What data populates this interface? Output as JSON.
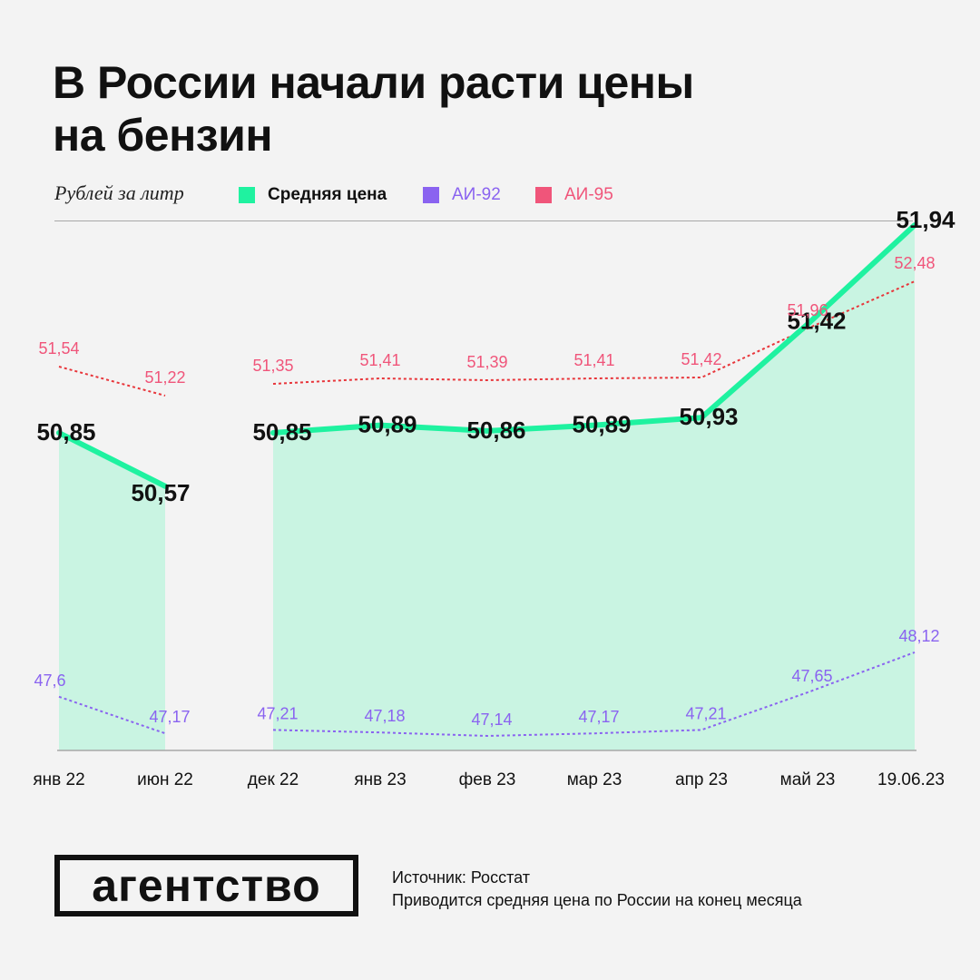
{
  "header": {
    "title_line1": "В России начали расти цены",
    "title_line2": "на бензин",
    "unit_label": "Рублей за литр"
  },
  "legend": {
    "avg": "Средняя цена",
    "ai92": "АИ-92",
    "ai95": "АИ-95"
  },
  "colors": {
    "avg_line": "#1ff2a0",
    "avg_fill": "#c9f4e2",
    "ai92": "#8a63f0",
    "ai95": "#f0557a",
    "ai95_line": "#e8353a",
    "axis": "#a8a8a8"
  },
  "chart_data": {
    "type": "line",
    "categories": [
      "янв 22",
      "июн 22",
      "дек 22",
      "янв 23",
      "фев 23",
      "мар 23",
      "апр 23",
      "май 23",
      "19.06.23"
    ],
    "series": [
      {
        "name": "Средняя цена",
        "values": [
          50.85,
          50.57,
          50.85,
          50.89,
          50.86,
          50.89,
          50.93,
          51.42,
          51.94
        ],
        "labels": [
          "50,85",
          "50,57",
          "50,85",
          "50,89",
          "50,86",
          "50,89",
          "50,93",
          "51,42",
          "51,94"
        ]
      },
      {
        "name": "АИ-92",
        "values": [
          47.6,
          47.17,
          47.21,
          47.18,
          47.14,
          47.17,
          47.21,
          47.65,
          48.12
        ],
        "labels": [
          "47,6",
          "47,17",
          "47,21",
          "47,18",
          "47,14",
          "47,17",
          "47,21",
          "47,65",
          "48,12"
        ]
      },
      {
        "name": "АИ-95",
        "values": [
          51.54,
          51.22,
          51.35,
          51.41,
          51.39,
          51.41,
          51.42,
          51.96,
          52.48
        ],
        "labels": [
          "51,54",
          "51,22",
          "51,35",
          "51,41",
          "51,39",
          "51,41",
          "51,42",
          "51,96",
          "52,48"
        ]
      }
    ],
    "gap_after_index": 1,
    "ylabel": "Рублей за литр",
    "legend_position": "top",
    "grid": false
  },
  "logo": {
    "text": "агентство"
  },
  "footer": {
    "source": "Источник: Росстат",
    "note": "Приводится средняя цена по России на конец месяца"
  }
}
